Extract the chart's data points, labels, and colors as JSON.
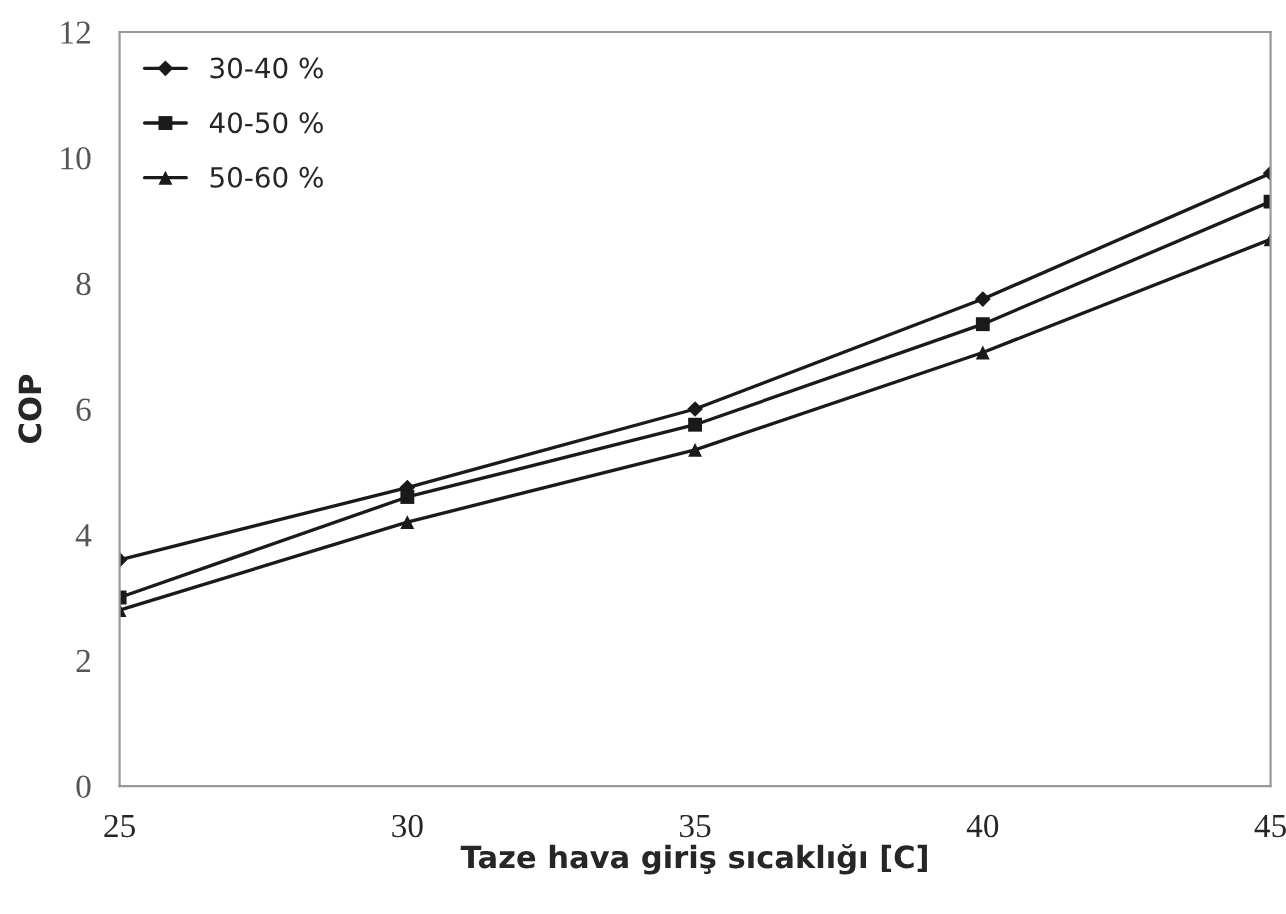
{
  "chart_data": {
    "type": "line",
    "xlabel": "Taze hava giriş sıcaklığı [C]",
    "ylabel": "COP",
    "x": [
      25,
      30,
      35,
      40,
      45
    ],
    "series": [
      {
        "name": "30-40 %",
        "color": "#1a1a1a",
        "marker": "diamond",
        "values": [
          3.6,
          4.75,
          6.0,
          7.75,
          9.75
        ]
      },
      {
        "name": "40-50 %",
        "color": "#1a1a1a",
        "marker": "square",
        "values": [
          3.0,
          4.6,
          5.75,
          7.35,
          9.3
        ]
      },
      {
        "name": "50-60 %",
        "color": "#1a1a1a",
        "marker": "triangle",
        "values": [
          2.8,
          4.2,
          5.35,
          6.9,
          8.7
        ]
      }
    ],
    "xlim": [
      25,
      45
    ],
    "xticks": [
      25,
      30,
      35,
      40,
      45
    ],
    "ylim": [
      0,
      12
    ],
    "yticks": [
      0,
      2,
      4,
      6,
      8,
      10,
      12
    ],
    "grid": false,
    "legend": "top left",
    "line_style": "solid"
  }
}
